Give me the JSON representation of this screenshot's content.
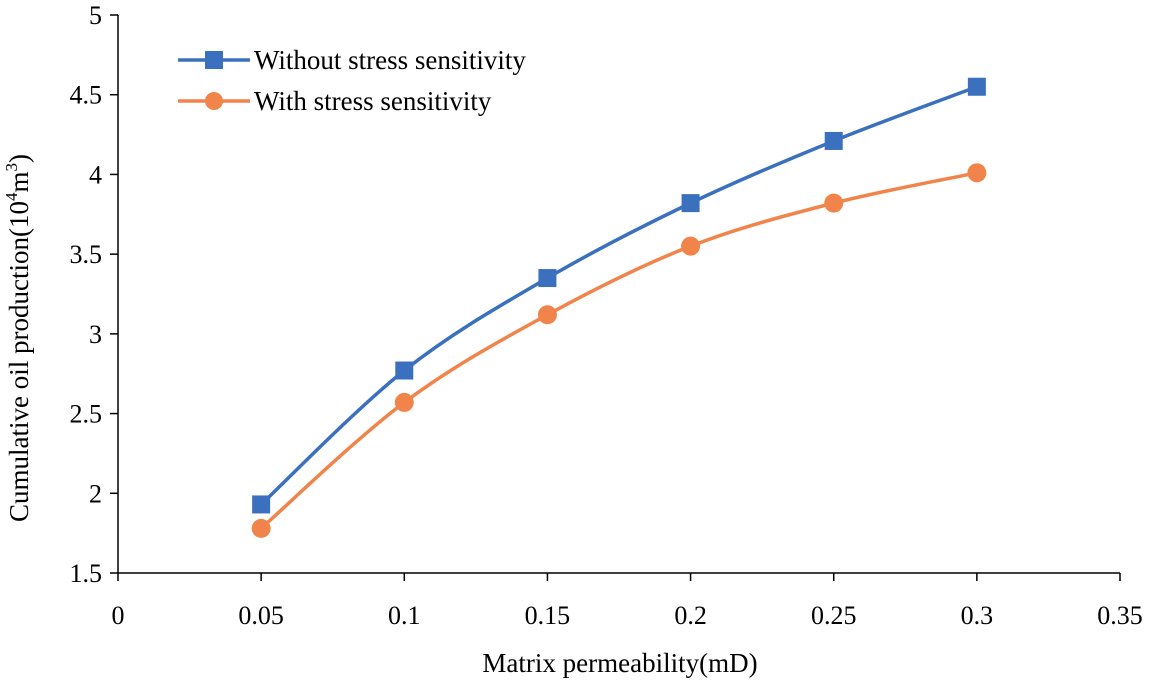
{
  "chart_data": {
    "type": "line",
    "title": "",
    "xlabel": "Matrix permeability(mD)",
    "ylabel": {
      "prefix": "Cumulative oil production(10",
      "exp1": "4",
      "mid": "m",
      "exp2": "3",
      "suffix": ")"
    },
    "xlim": [
      0,
      0.35
    ],
    "ylim": [
      1.5,
      5
    ],
    "xticks": [
      "0",
      "0.05",
      "0.1",
      "0.15",
      "0.2",
      "0.25",
      "0.3",
      "0.35"
    ],
    "yticks": [
      "1.5",
      "2",
      "2.5",
      "3",
      "3.5",
      "4",
      "4.5",
      "5"
    ],
    "grid": false,
    "legend_position": "top-left",
    "x": [
      0.05,
      0.1,
      0.15,
      0.2,
      0.25,
      0.3
    ],
    "series": [
      {
        "name": "Without stress sensitivity",
        "color": "#3a70bd",
        "marker": "square",
        "values": [
          1.93,
          2.77,
          3.35,
          3.82,
          4.21,
          4.55
        ]
      },
      {
        "name": "With stress sensitivity",
        "color": "#f0844a",
        "marker": "circle",
        "values": [
          1.78,
          2.57,
          3.12,
          3.55,
          3.82,
          4.01
        ]
      }
    ]
  }
}
